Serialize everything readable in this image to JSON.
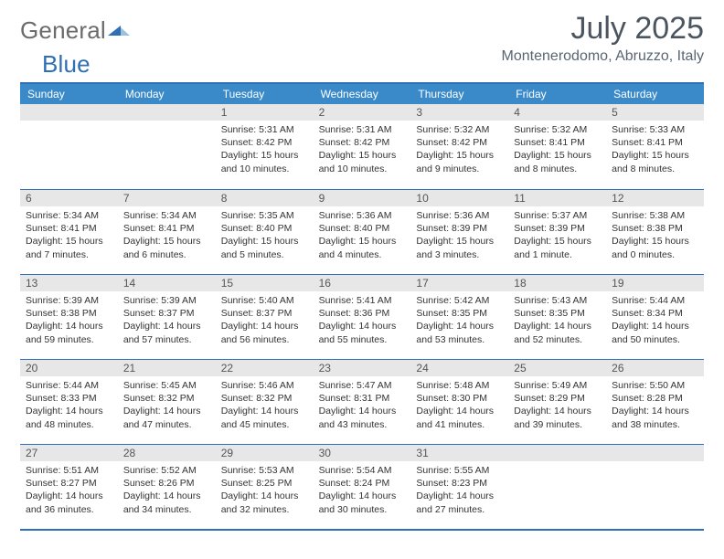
{
  "brand": {
    "part1": "General",
    "part2": "Blue"
  },
  "title": "July 2025",
  "location": "Montenerodomo, Abruzzo, Italy",
  "colors": {
    "header_bg": "#3a8ac9",
    "border": "#2f6fb3",
    "date_bg": "#e7e7e7",
    "text_muted": "#6b6b6b",
    "title_color": "#4a5560"
  },
  "weekdays": [
    "Sunday",
    "Monday",
    "Tuesday",
    "Wednesday",
    "Thursday",
    "Friday",
    "Saturday"
  ],
  "weeks": [
    [
      null,
      null,
      {
        "d": "1",
        "sr": "5:31 AM",
        "ss": "8:42 PM",
        "dl": "15 hours and 10 minutes."
      },
      {
        "d": "2",
        "sr": "5:31 AM",
        "ss": "8:42 PM",
        "dl": "15 hours and 10 minutes."
      },
      {
        "d": "3",
        "sr": "5:32 AM",
        "ss": "8:42 PM",
        "dl": "15 hours and 9 minutes."
      },
      {
        "d": "4",
        "sr": "5:32 AM",
        "ss": "8:41 PM",
        "dl": "15 hours and 8 minutes."
      },
      {
        "d": "5",
        "sr": "5:33 AM",
        "ss": "8:41 PM",
        "dl": "15 hours and 8 minutes."
      }
    ],
    [
      {
        "d": "6",
        "sr": "5:34 AM",
        "ss": "8:41 PM",
        "dl": "15 hours and 7 minutes."
      },
      {
        "d": "7",
        "sr": "5:34 AM",
        "ss": "8:41 PM",
        "dl": "15 hours and 6 minutes."
      },
      {
        "d": "8",
        "sr": "5:35 AM",
        "ss": "8:40 PM",
        "dl": "15 hours and 5 minutes."
      },
      {
        "d": "9",
        "sr": "5:36 AM",
        "ss": "8:40 PM",
        "dl": "15 hours and 4 minutes."
      },
      {
        "d": "10",
        "sr": "5:36 AM",
        "ss": "8:39 PM",
        "dl": "15 hours and 3 minutes."
      },
      {
        "d": "11",
        "sr": "5:37 AM",
        "ss": "8:39 PM",
        "dl": "15 hours and 1 minute."
      },
      {
        "d": "12",
        "sr": "5:38 AM",
        "ss": "8:38 PM",
        "dl": "15 hours and 0 minutes."
      }
    ],
    [
      {
        "d": "13",
        "sr": "5:39 AM",
        "ss": "8:38 PM",
        "dl": "14 hours and 59 minutes."
      },
      {
        "d": "14",
        "sr": "5:39 AM",
        "ss": "8:37 PM",
        "dl": "14 hours and 57 minutes."
      },
      {
        "d": "15",
        "sr": "5:40 AM",
        "ss": "8:37 PM",
        "dl": "14 hours and 56 minutes."
      },
      {
        "d": "16",
        "sr": "5:41 AM",
        "ss": "8:36 PM",
        "dl": "14 hours and 55 minutes."
      },
      {
        "d": "17",
        "sr": "5:42 AM",
        "ss": "8:35 PM",
        "dl": "14 hours and 53 minutes."
      },
      {
        "d": "18",
        "sr": "5:43 AM",
        "ss": "8:35 PM",
        "dl": "14 hours and 52 minutes."
      },
      {
        "d": "19",
        "sr": "5:44 AM",
        "ss": "8:34 PM",
        "dl": "14 hours and 50 minutes."
      }
    ],
    [
      {
        "d": "20",
        "sr": "5:44 AM",
        "ss": "8:33 PM",
        "dl": "14 hours and 48 minutes."
      },
      {
        "d": "21",
        "sr": "5:45 AM",
        "ss": "8:32 PM",
        "dl": "14 hours and 47 minutes."
      },
      {
        "d": "22",
        "sr": "5:46 AM",
        "ss": "8:32 PM",
        "dl": "14 hours and 45 minutes."
      },
      {
        "d": "23",
        "sr": "5:47 AM",
        "ss": "8:31 PM",
        "dl": "14 hours and 43 minutes."
      },
      {
        "d": "24",
        "sr": "5:48 AM",
        "ss": "8:30 PM",
        "dl": "14 hours and 41 minutes."
      },
      {
        "d": "25",
        "sr": "5:49 AM",
        "ss": "8:29 PM",
        "dl": "14 hours and 39 minutes."
      },
      {
        "d": "26",
        "sr": "5:50 AM",
        "ss": "8:28 PM",
        "dl": "14 hours and 38 minutes."
      }
    ],
    [
      {
        "d": "27",
        "sr": "5:51 AM",
        "ss": "8:27 PM",
        "dl": "14 hours and 36 minutes."
      },
      {
        "d": "28",
        "sr": "5:52 AM",
        "ss": "8:26 PM",
        "dl": "14 hours and 34 minutes."
      },
      {
        "d": "29",
        "sr": "5:53 AM",
        "ss": "8:25 PM",
        "dl": "14 hours and 32 minutes."
      },
      {
        "d": "30",
        "sr": "5:54 AM",
        "ss": "8:24 PM",
        "dl": "14 hours and 30 minutes."
      },
      {
        "d": "31",
        "sr": "5:55 AM",
        "ss": "8:23 PM",
        "dl": "14 hours and 27 minutes."
      },
      null,
      null
    ]
  ],
  "labels": {
    "sunrise": "Sunrise:",
    "sunset": "Sunset:",
    "daylight": "Daylight:"
  }
}
